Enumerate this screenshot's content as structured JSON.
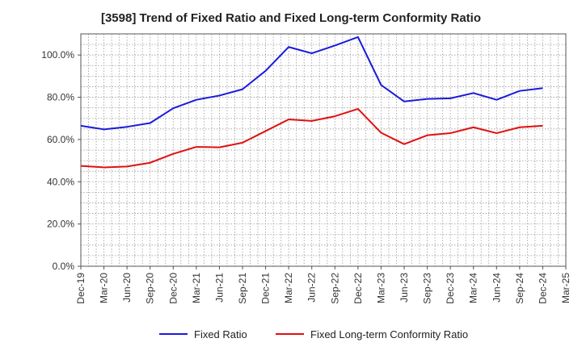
{
  "chart_data": {
    "type": "line",
    "title": "[3598]  Trend of Fixed Ratio and Fixed Long-term Conformity Ratio",
    "xlabel": "",
    "ylabel": "",
    "x": [
      "Dec-19",
      "Mar-20",
      "Jun-20",
      "Sep-20",
      "Dec-20",
      "Mar-21",
      "Jun-21",
      "Sep-21",
      "Dec-21",
      "Mar-22",
      "Jun-22",
      "Sep-22",
      "Dec-22",
      "Mar-23",
      "Jun-23",
      "Sep-23",
      "Dec-23",
      "Mar-24",
      "Jun-24",
      "Sep-24",
      "Dec-24",
      "Mar-25"
    ],
    "ylim": [
      0,
      110
    ],
    "yticks": [
      0,
      20,
      40,
      60,
      80,
      100
    ],
    "ytick_labels": [
      "0.0%",
      "20.0%",
      "40.0%",
      "60.0%",
      "80.0%",
      "100.0%"
    ],
    "grid": true,
    "legend_position": "bottom",
    "series": [
      {
        "name": "Fixed Ratio",
        "color": "#1a1adb",
        "values": [
          66.5,
          64.8,
          66.0,
          67.8,
          74.8,
          78.8,
          80.8,
          83.8,
          92.5,
          103.8,
          100.8,
          104.5,
          108.5,
          85.8,
          78.0,
          79.2,
          79.5,
          82.0,
          78.8,
          83.0,
          84.3,
          null
        ]
      },
      {
        "name": "Fixed Long-term Conformity Ratio",
        "color": "#e01010",
        "values": [
          47.5,
          46.8,
          47.2,
          49.0,
          53.2,
          56.5,
          56.3,
          58.5,
          64.0,
          69.5,
          68.8,
          71.0,
          74.5,
          63.2,
          57.8,
          62.0,
          63.0,
          65.8,
          63.0,
          65.8,
          66.5,
          null
        ]
      }
    ]
  }
}
